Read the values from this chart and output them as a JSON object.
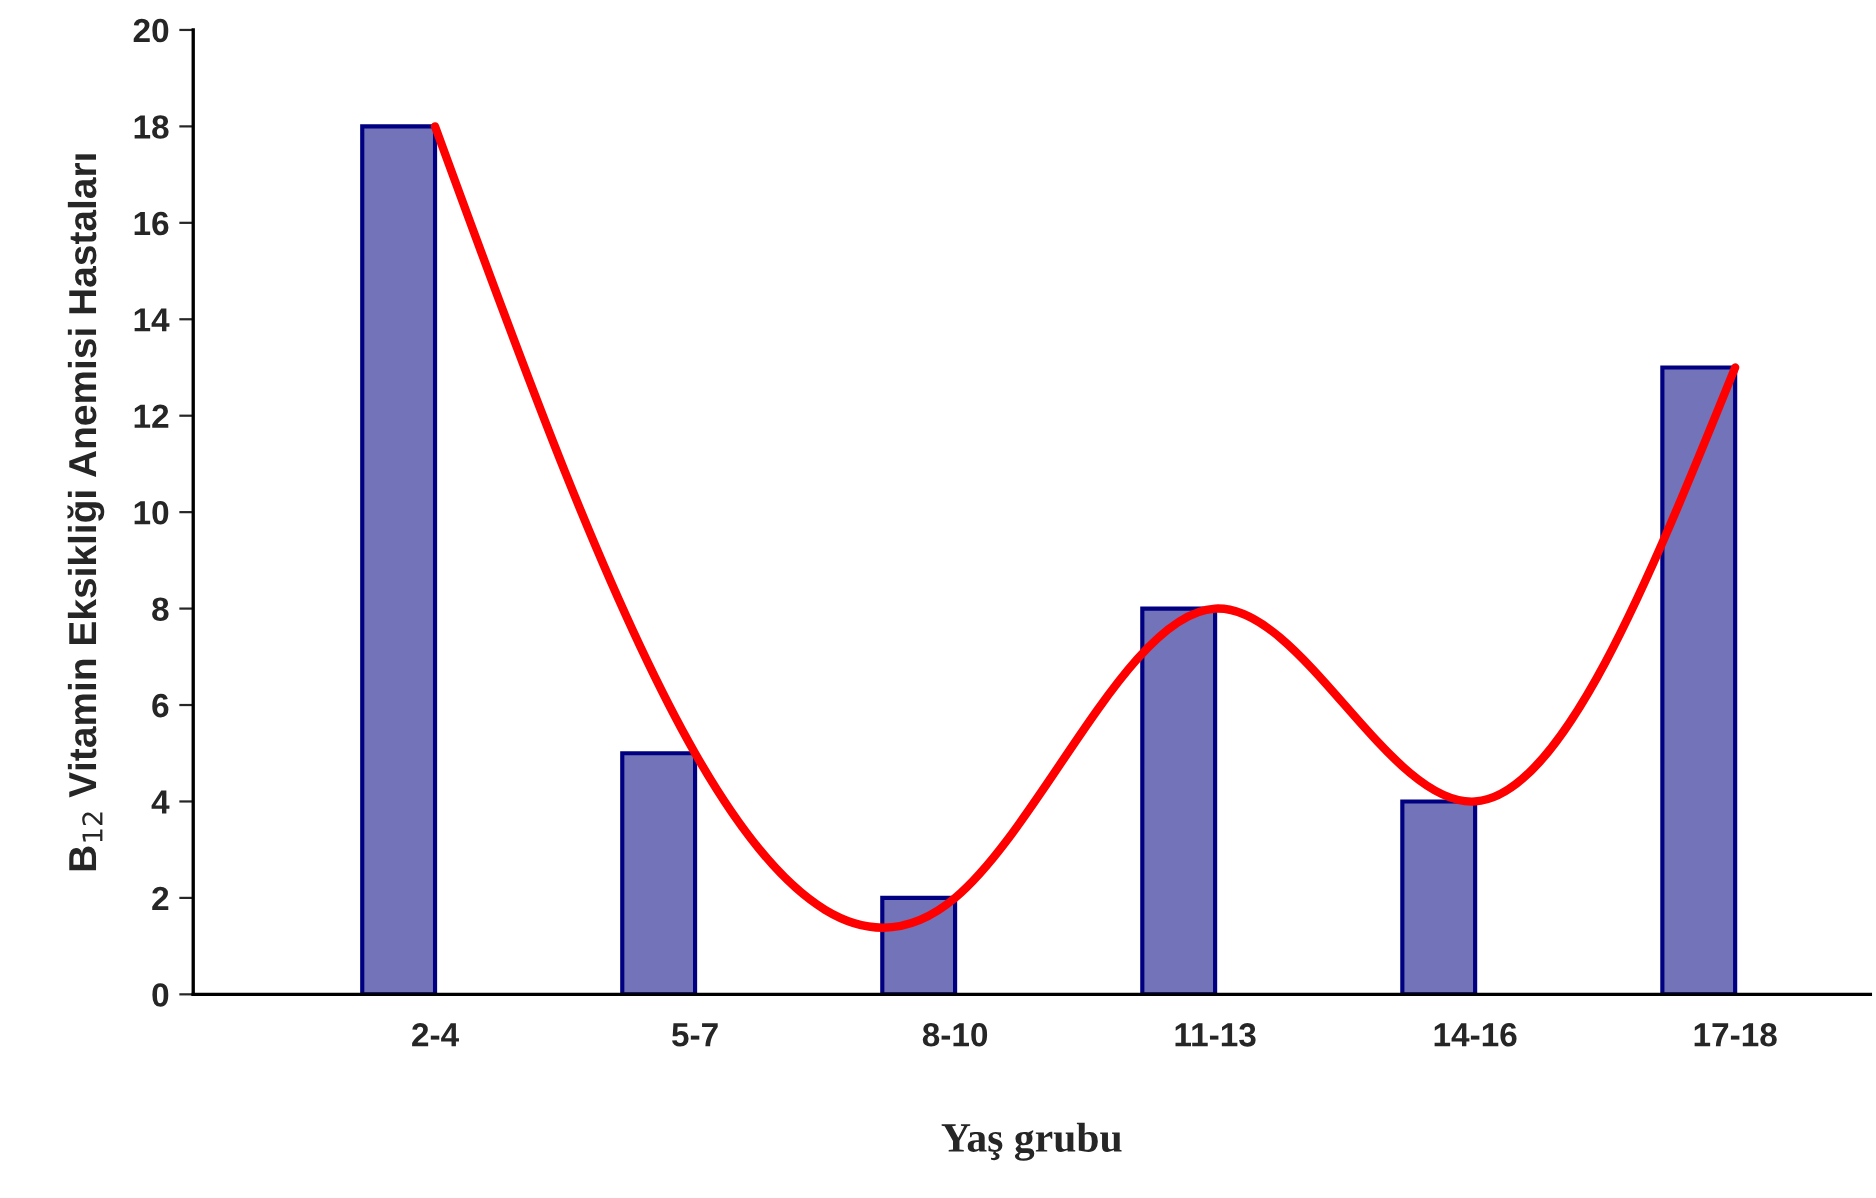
{
  "chart_data": {
    "type": "bar",
    "xlabel": "Yaş grubu",
    "ylabel": "B$_{12}$ Vitamin Eksikliği Anemisi Hastaları",
    "categories": [
      "2-4",
      "5-7",
      "8-10",
      "11-13",
      "14-16",
      "17-18"
    ],
    "series": [
      {
        "color": "#000080",
        "values": [
          18,
          5,
          2,
          8,
          4,
          13
        ]
      },
      {
        "type": "line",
        "color": "#ff0000",
        "values": [
          18,
          5,
          2,
          8,
          4,
          13
        ]
      }
    ],
    "ylim": [
      0,
      20
    ],
    "yticks": [
      0,
      2,
      4,
      6,
      8,
      10,
      12,
      14,
      16,
      18,
      20
    ],
    "grid": false,
    "legend": false
  }
}
